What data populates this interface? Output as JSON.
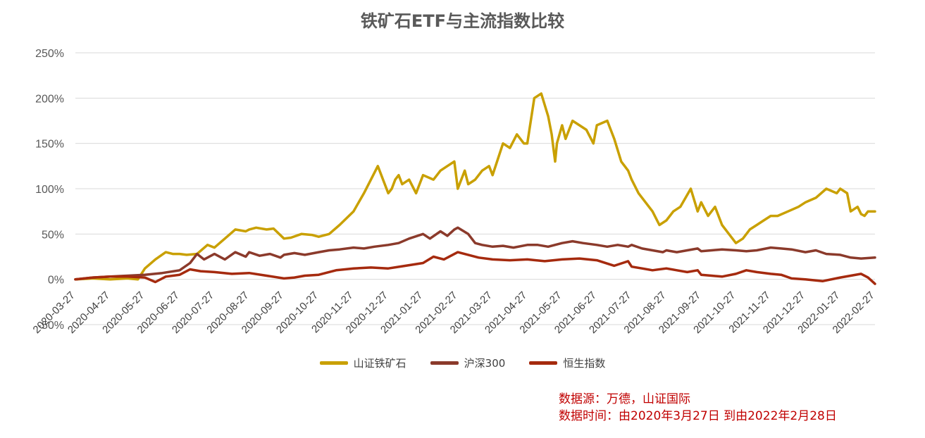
{
  "chart_data": {
    "type": "line",
    "title": "铁矿石ETF与主流指数比较",
    "xlabel": "",
    "ylabel": "",
    "ylim": [
      -50,
      250
    ],
    "yticks": [
      -50,
      0,
      50,
      100,
      150,
      200,
      250
    ],
    "ytick_labels": [
      "-50%",
      "0%",
      "50%",
      "100%",
      "150%",
      "200%",
      "250%"
    ],
    "x_range": [
      0,
      23
    ],
    "x_ticks": [
      0,
      1,
      2,
      3,
      4,
      5,
      6,
      7,
      8,
      9,
      10,
      11,
      12,
      13,
      14,
      15,
      16,
      17,
      18,
      19,
      20,
      21,
      22,
      23
    ],
    "x_tick_labels": [
      "2020-03-27",
      "2020-04-27",
      "2020-05-27",
      "2020-06-27",
      "2020-07-27",
      "2020-08-27",
      "2020-09-27",
      "2020-10-27",
      "2020-11-27",
      "2020-12-27",
      "2021-01-27",
      "2021-02-27",
      "2021-03-27",
      "2021-04-27",
      "2021-05-27",
      "2021-06-27",
      "2021-07-27",
      "2021-08-27",
      "2021-09-27",
      "2021-10-27",
      "2021-11-27",
      "2021-12-27",
      "2022-01-27",
      "2022-02-27"
    ],
    "grid": true,
    "legend_position": "bottom-center",
    "series": [
      {
        "name": "山证铁矿石",
        "color": "#c9a000",
        "x": [
          0,
          0.5,
          1,
          1.5,
          1.8,
          2,
          2.3,
          2.6,
          2.8,
          3,
          3.2,
          3.5,
          3.8,
          4,
          4.3,
          4.6,
          4.9,
          5,
          5.2,
          5.5,
          5.7,
          6,
          6.2,
          6.5,
          6.8,
          7,
          7.3,
          7.6,
          8,
          8.3,
          8.5,
          8.7,
          9,
          9.1,
          9.2,
          9.3,
          9.4,
          9.6,
          9.8,
          10,
          10.3,
          10.5,
          10.7,
          10.9,
          11,
          11.2,
          11.3,
          11.5,
          11.7,
          11.9,
          12,
          12.3,
          12.5,
          12.7,
          12.9,
          13,
          13.2,
          13.4,
          13.6,
          13.7,
          13.75,
          13.8,
          13.85,
          14,
          14.1,
          14.3,
          14.5,
          14.7,
          14.9,
          15,
          15.3,
          15.5,
          15.7,
          15.9,
          16,
          16.2,
          16.4,
          16.6,
          16.8,
          17,
          17.2,
          17.4,
          17.7,
          17.9,
          18,
          18.2,
          18.4,
          18.6,
          18.8,
          19,
          19.2,
          19.4,
          19.6,
          19.8,
          20,
          20.2,
          20.5,
          20.8,
          21,
          21.3,
          21.6,
          21.9,
          22,
          22.2,
          22.3,
          22.5,
          22.6,
          22.7,
          22.8,
          23
        ],
        "values": [
          0,
          1,
          0,
          1,
          0,
          12,
          22,
          30,
          28,
          28,
          27,
          28,
          38,
          35,
          45,
          55,
          53,
          55,
          57,
          55,
          56,
          45,
          46,
          50,
          49,
          47,
          50,
          60,
          75,
          95,
          110,
          125,
          95,
          100,
          110,
          115,
          105,
          110,
          95,
          115,
          110,
          120,
          125,
          130,
          100,
          120,
          105,
          110,
          120,
          125,
          115,
          150,
          145,
          160,
          150,
          150,
          200,
          205,
          180,
          160,
          145,
          130,
          150,
          170,
          155,
          175,
          170,
          165,
          150,
          170,
          175,
          155,
          130,
          120,
          110,
          95,
          85,
          75,
          60,
          65,
          75,
          80,
          100,
          75,
          85,
          70,
          80,
          60,
          50,
          40,
          45,
          55,
          60,
          65,
          70,
          70,
          75,
          80,
          85,
          90,
          100,
          95,
          100,
          95,
          75,
          80,
          72,
          70,
          75,
          75
        ]
      },
      {
        "name": "沪深300",
        "color": "#8b3a2b",
        "x": [
          0,
          0.5,
          1,
          1.5,
          2,
          2.5,
          3,
          3.3,
          3.5,
          3.7,
          4,
          4.3,
          4.6,
          4.9,
          5,
          5.3,
          5.6,
          5.9,
          6,
          6.3,
          6.6,
          7,
          7.3,
          7.6,
          8,
          8.3,
          8.6,
          9,
          9.3,
          9.6,
          10,
          10.2,
          10.5,
          10.7,
          10.9,
          11,
          11.3,
          11.5,
          11.7,
          12,
          12.3,
          12.6,
          13,
          13.3,
          13.6,
          14,
          14.3,
          14.6,
          15,
          15.3,
          15.6,
          15.9,
          16,
          16.3,
          16.6,
          16.9,
          17,
          17.3,
          17.6,
          17.9,
          18,
          18.3,
          18.6,
          19,
          19.3,
          19.6,
          20,
          20.3,
          20.6,
          21,
          21.3,
          21.6,
          22,
          22.3,
          22.6,
          23
        ],
        "values": [
          0,
          2,
          3,
          4,
          5,
          7,
          10,
          18,
          28,
          22,
          28,
          22,
          30,
          25,
          30,
          26,
          28,
          24,
          27,
          29,
          27,
          30,
          32,
          33,
          35,
          34,
          36,
          38,
          40,
          45,
          50,
          45,
          53,
          48,
          55,
          57,
          50,
          40,
          38,
          36,
          37,
          35,
          38,
          38,
          36,
          40,
          42,
          40,
          38,
          36,
          38,
          36,
          38,
          34,
          32,
          30,
          32,
          30,
          32,
          34,
          31,
          32,
          33,
          32,
          31,
          32,
          35,
          34,
          33,
          30,
          32,
          28,
          27,
          24,
          23,
          24
        ]
      },
      {
        "name": "恒生指数",
        "color": "#a52a0e",
        "x": [
          0,
          0.5,
          1,
          1.5,
          2,
          2.3,
          2.6,
          3,
          3.3,
          3.6,
          4,
          4.5,
          5,
          5.5,
          6,
          6.3,
          6.6,
          7,
          7.5,
          8,
          8.5,
          9,
          9.5,
          10,
          10.3,
          10.6,
          11,
          11.3,
          11.6,
          12,
          12.5,
          13,
          13.5,
          14,
          14.5,
          15,
          15.5,
          15.9,
          16,
          16.3,
          16.6,
          17,
          17.3,
          17.6,
          17.9,
          18,
          18.3,
          18.6,
          19,
          19.3,
          19.6,
          20,
          20.3,
          20.6,
          21,
          21.5,
          22,
          22.3,
          22.6,
          22.8,
          23
        ],
        "values": [
          0,
          2,
          3,
          3,
          2,
          -3,
          3,
          5,
          11,
          9,
          8,
          6,
          7,
          4,
          1,
          2,
          4,
          5,
          10,
          12,
          13,
          12,
          15,
          18,
          25,
          22,
          30,
          27,
          24,
          22,
          21,
          22,
          20,
          22,
          23,
          21,
          15,
          20,
          14,
          12,
          10,
          12,
          10,
          8,
          10,
          5,
          4,
          3,
          6,
          10,
          8,
          6,
          5,
          1,
          0,
          -2,
          2,
          4,
          6,
          2,
          -5
        ]
      }
    ]
  },
  "source": {
    "line1": "数据源：万德，山证国际",
    "line2": "数据时间：由2020年3月27日 到由2022年2月28日"
  }
}
